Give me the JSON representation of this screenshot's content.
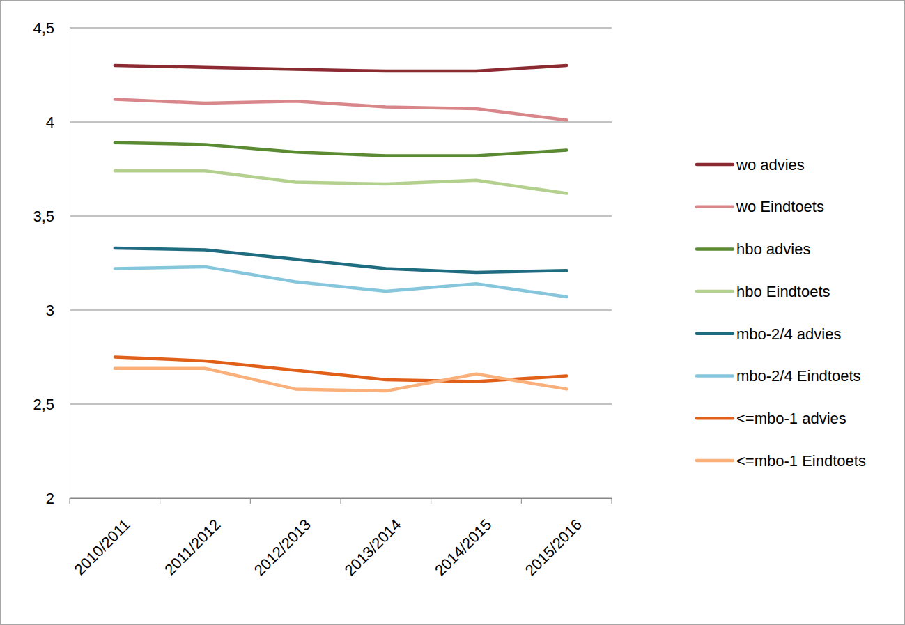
{
  "chart_data": {
    "type": "line",
    "categories": [
      "2010/2011",
      "2011/2012",
      "2012/2013",
      "2013/2014",
      "2014/2015",
      "2015/2016"
    ],
    "series": [
      {
        "name": "wo advies",
        "color": "#8b2a30",
        "values": [
          4.3,
          4.29,
          4.28,
          4.27,
          4.27,
          4.3
        ]
      },
      {
        "name": "wo Eindtoets",
        "color": "#d9868a",
        "values": [
          4.12,
          4.1,
          4.11,
          4.08,
          4.07,
          4.01
        ]
      },
      {
        "name": "hbo advies",
        "color": "#5a8a32",
        "values": [
          3.89,
          3.88,
          3.84,
          3.82,
          3.82,
          3.85
        ]
      },
      {
        "name": "hbo Eindtoets",
        "color": "#b3d08f",
        "values": [
          3.74,
          3.74,
          3.68,
          3.67,
          3.69,
          3.62
        ]
      },
      {
        "name": "mbo-2/4 advies",
        "color": "#1f6b80",
        "values": [
          3.33,
          3.32,
          3.27,
          3.22,
          3.2,
          3.21
        ]
      },
      {
        "name": "mbo-2/4 Eindtoets",
        "color": "#86c6dc",
        "values": [
          3.22,
          3.23,
          3.15,
          3.1,
          3.14,
          3.07
        ]
      },
      {
        "name": "<=mbo-1 advies",
        "color": "#e0601a",
        "values": [
          2.75,
          2.73,
          2.68,
          2.63,
          2.62,
          2.65
        ]
      },
      {
        "name": "<=mbo-1 Eindtoets",
        "color": "#f9b07a",
        "values": [
          2.69,
          2.69,
          2.58,
          2.57,
          2.66,
          2.58
        ]
      }
    ],
    "ylim": [
      2,
      4.5
    ],
    "yticks": [
      2,
      {
        "value": 2.5,
        "label": "2,5"
      },
      3,
      {
        "value": 3.5,
        "label": "3,5"
      },
      4,
      {
        "value": 4.5,
        "label": "4,5"
      }
    ],
    "grid": true,
    "legend": "right"
  }
}
